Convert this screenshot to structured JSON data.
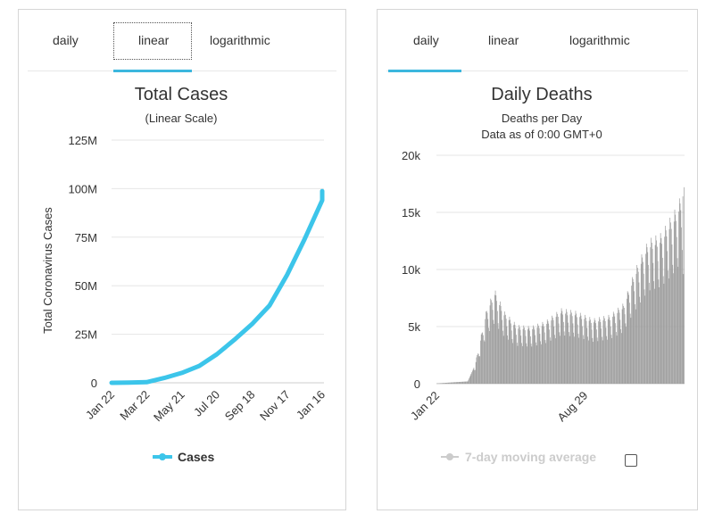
{
  "left_panel": {
    "tabs": [
      {
        "label": "daily"
      },
      {
        "label": "linear"
      },
      {
        "label": "logarithmic"
      }
    ],
    "active_tab": 1,
    "legend_label": "Cases",
    "legend_color": "#3cc5ea"
  },
  "right_panel": {
    "tabs": [
      {
        "label": "daily"
      },
      {
        "label": "linear"
      },
      {
        "label": "logarithmic"
      }
    ],
    "active_tab": 0,
    "legend_label": "7-day moving average",
    "legend_color": "#cccccc"
  },
  "accent_color": "#3cb7de",
  "chart_data": [
    {
      "type": "line",
      "title": "Total Cases",
      "subtitle": "(Linear Scale)",
      "ylabel": "Total Coronavirus Cases",
      "xlabel": "",
      "ylim": [
        0,
        125000000
      ],
      "yticks": [
        0,
        25000000,
        50000000,
        75000000,
        100000000,
        125000000
      ],
      "ytick_labels": [
        "0",
        "25M",
        "50M",
        "75M",
        "100M",
        "125M"
      ],
      "xtick_labels": [
        "Jan 22",
        "Mar 22",
        "May 21",
        "Jul 20",
        "Sep 18",
        "Nov 17",
        "Jan 16"
      ],
      "legend": "bottom-center",
      "grid": true,
      "series": [
        {
          "name": "Cases",
          "color": "#3cc5ea",
          "x": [
            "2020-01-22",
            "2020-02-21",
            "2020-03-22",
            "2020-04-21",
            "2020-05-21",
            "2020-06-20",
            "2020-07-20",
            "2020-08-19",
            "2020-09-18",
            "2020-10-18",
            "2020-11-17",
            "2020-12-17",
            "2021-01-16",
            "2021-01-23"
          ],
          "values": [
            600,
            80000,
            340000,
            2500000,
            5100000,
            8700000,
            14700000,
            22200000,
            30200000,
            39800000,
            55600000,
            74000000,
            94000000,
            98700000
          ]
        }
      ]
    },
    {
      "type": "bar",
      "title": "Daily Deaths",
      "subtitle": "Deaths per Day",
      "subtitle2": "Data as of 0:00 GMT+0",
      "xlabel": "",
      "ylabel": "",
      "ylim": [
        0,
        20000
      ],
      "yticks": [
        0,
        5000,
        10000,
        15000,
        20000
      ],
      "ytick_labels": [
        "0",
        "5k",
        "10k",
        "15k",
        "20k"
      ],
      "xtick_labels": [
        "Jan 22",
        "Aug 29"
      ],
      "legend": "bottom-center",
      "grid": true,
      "series": [
        {
          "name": "Deaths",
          "color": "#999999",
          "start_date": "2020-01-22",
          "end_date": "2021-01-23",
          "monthly_profile": [
            {
              "x": "2020-01-22",
              "y": 20
            },
            {
              "x": "2020-02-15",
              "y": 120
            },
            {
              "x": "2020-03-08",
              "y": 200
            },
            {
              "x": "2020-03-20",
              "y": 1800
            },
            {
              "x": "2020-04-05",
              "y": 5900
            },
            {
              "x": "2020-04-17",
              "y": 7400
            },
            {
              "x": "2020-05-01",
              "y": 5700
            },
            {
              "x": "2020-05-20",
              "y": 4600
            },
            {
              "x": "2020-06-10",
              "y": 4500
            },
            {
              "x": "2020-07-01",
              "y": 4900
            },
            {
              "x": "2020-07-25",
              "y": 5900
            },
            {
              "x": "2020-08-15",
              "y": 5700
            },
            {
              "x": "2020-09-10",
              "y": 5100
            },
            {
              "x": "2020-10-05",
              "y": 5400
            },
            {
              "x": "2020-10-25",
              "y": 6300
            },
            {
              "x": "2020-11-10",
              "y": 8800
            },
            {
              "x": "2020-12-01",
              "y": 11300
            },
            {
              "x": "2020-12-20",
              "y": 11800
            },
            {
              "x": "2021-01-10",
              "y": 13700
            },
            {
              "x": "2021-01-23",
              "y": 15400
            }
          ]
        }
      ]
    }
  ]
}
